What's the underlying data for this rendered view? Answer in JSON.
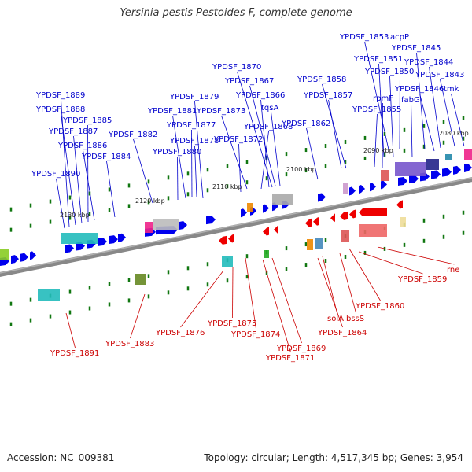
{
  "title": "Yersinia pestis Pestoides F, complete genome",
  "footer": {
    "accession": "Accession: NC_009381",
    "summary": "Topology: circular; Length: 4,517,345 bp; Genes: 3,954"
  },
  "colors": {
    "forward_gene": "#0000ee",
    "reverse_gene": "#ee0000",
    "forward_label": "#0000cc",
    "reverse_label": "#cc0000",
    "backbone": "#888888",
    "tick": "#117711"
  },
  "scale_labels": [
    "2080 kbp",
    "2090 kbp",
    "2100 kbp",
    "2110 kbp",
    "2120 kbp",
    "2130 kbp"
  ],
  "forward_labels": [
    "YPDSF_1853",
    "acpP",
    "YPDSF_1845",
    "YPDSF_1851",
    "YPDSF_1844",
    "YPDSF_1850",
    "YPDSF_1843",
    "rpmF",
    "YPDSF_1846",
    "tmk",
    "fabG",
    "YPDSF_1855",
    "YPDSF_1858",
    "YPDSF_1857",
    "YPDSF_1862",
    "YPDSF_1870",
    "YPDSF_1867",
    "YPDSF_1866",
    "tqsA",
    "YPDSF_1873",
    "YPDSF_1868",
    "YPDSF_1872",
    "YPDSF_1879",
    "YPDSF_1881",
    "YPDSF_1877",
    "YPDSF_1878",
    "YPDSF_1882",
    "YPDSF_1880",
    "YPDSF_1889",
    "YPDSF_1888",
    "YPDSF_1885",
    "YPDSF_1887",
    "YPDSF_1886",
    "YPDSF_1884",
    "YPDSF_1890"
  ],
  "reverse_labels": [
    "rne",
    "YPDSF_1859",
    "YPDSF_1860",
    "solA",
    "bssS",
    "YPDSF_1864",
    "YPDSF_1869",
    "YPDSF_1871",
    "YPDSF_1874",
    "YPDSF_1875",
    "YPDSF_1876",
    "YPDSF_1883",
    "YPDSF_1891"
  ]
}
